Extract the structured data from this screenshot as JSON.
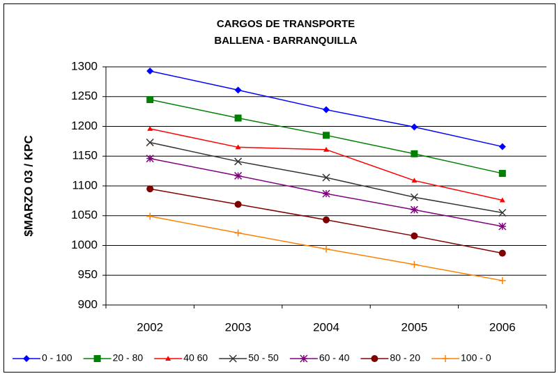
{
  "chart_data": {
    "type": "line",
    "title": "CARGOS DE TRANSPORTE",
    "subtitle": "BALLENA - BARRANQUILLA",
    "y_label": "$MARZO 03 / KPC",
    "categories": [
      "2002",
      "2003",
      "2004",
      "2005",
      "2006"
    ],
    "ylim": [
      900,
      1300
    ],
    "yticks": [
      900,
      950,
      1000,
      1050,
      1100,
      1150,
      1200,
      1250,
      1300
    ],
    "grid": true,
    "legend": "bottom",
    "series": [
      {
        "name": "0 - 100",
        "color": "#0000ff",
        "marker": "diamond",
        "values": [
          1293,
          1261,
          1228,
          1199,
          1166
        ]
      },
      {
        "name": "20 - 80",
        "color": "#008000",
        "marker": "square",
        "values": [
          1245,
          1214,
          1185,
          1154,
          1121
        ]
      },
      {
        "name": "40 60",
        "color": "#ff0000",
        "marker": "triangle",
        "values": [
          1196,
          1165,
          1161,
          1109,
          1076
        ]
      },
      {
        "name": "50 - 50",
        "color": "#333333",
        "marker": "x",
        "values": [
          1173,
          1141,
          1114,
          1081,
          1055
        ]
      },
      {
        "name": "60 - 40",
        "color": "#800080",
        "marker": "star",
        "values": [
          1146,
          1117,
          1087,
          1060,
          1032
        ]
      },
      {
        "name": "80 - 20",
        "color": "#800000",
        "marker": "circle",
        "values": [
          1095,
          1069,
          1043,
          1016,
          987
        ]
      },
      {
        "name": "100 - 0",
        "color": "#ff8000",
        "marker": "plus",
        "values": [
          1049,
          1021,
          994,
          968,
          941
        ]
      }
    ]
  }
}
